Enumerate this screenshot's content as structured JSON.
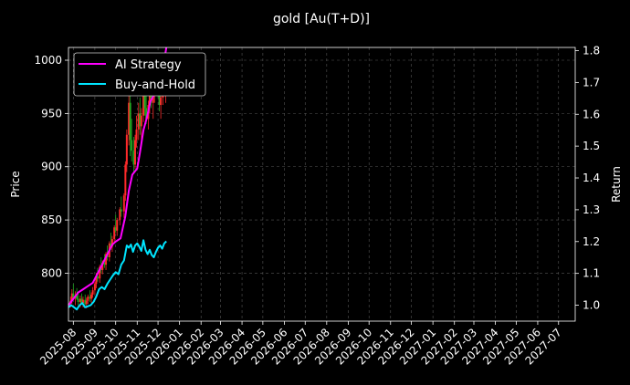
{
  "chart_data": {
    "type": "line",
    "title": "gold [Au(T+D)]",
    "ylabel_left": "Price",
    "ylabel_right": "Return",
    "xlabel": "",
    "grid": true,
    "legend_position": "top-left",
    "ylim_left": [
      755,
      1012
    ],
    "yticks_left": [
      800,
      850,
      900,
      950,
      1000
    ],
    "ylim_right": [
      0.95,
      1.81
    ],
    "yticks_right": [
      1.0,
      1.1,
      1.2,
      1.3,
      1.4,
      1.5,
      1.6,
      1.7,
      1.8
    ],
    "ytick_labels_right": [
      "1.0",
      "1.1",
      "1.2",
      "1.3",
      "1.4",
      "1.5",
      "1.6",
      "1.7",
      "1.8"
    ],
    "xlim": [
      "2025-07-25",
      "2027-07-25"
    ],
    "x_ticks": [
      "2025-08-01",
      "2025-09-01",
      "2025-10-01",
      "2025-11-01",
      "2025-12-01",
      "2026-01-01",
      "2026-02-01",
      "2026-03-01",
      "2026-04-01",
      "2026-05-01",
      "2026-06-01",
      "2026-07-01",
      "2026-08-01",
      "2026-09-01",
      "2026-10-01",
      "2026-11-01",
      "2026-12-01",
      "2027-01-01",
      "2027-02-01",
      "2027-03-01",
      "2027-04-01",
      "2027-05-01",
      "2027-06-01",
      "2027-07-01"
    ],
    "x_tick_labels": [
      "2025-08",
      "2025-09",
      "2025-10",
      "2025-11",
      "2025-12",
      "2026-01",
      "2026-02",
      "2026-03",
      "2026-04",
      "2026-05",
      "2026-06",
      "2026-07",
      "2026-08",
      "2026-09",
      "2026-10",
      "2026-11",
      "2026-12",
      "2027-01",
      "2027-02",
      "2027-03",
      "2027-04",
      "2027-05",
      "2027-06",
      "2027-07"
    ],
    "candlesticks": {
      "up_color": "#ff2a2a",
      "down_color": "#22aa22",
      "ohlc": [
        [
          "2025-07-28",
          772,
          778,
          768,
          774
        ],
        [
          "2025-07-30",
          774,
          785,
          771,
          781
        ],
        [
          "2025-08-01",
          781,
          790,
          776,
          777
        ],
        [
          "2025-08-04",
          777,
          783,
          770,
          779
        ],
        [
          "2025-08-06",
          779,
          786,
          775,
          776
        ],
        [
          "2025-08-08",
          776,
          782,
          770,
          773
        ],
        [
          "2025-08-11",
          773,
          779,
          768,
          776
        ],
        [
          "2025-08-13",
          776,
          781,
          771,
          772
        ],
        [
          "2025-08-15",
          772,
          778,
          768,
          775
        ],
        [
          "2025-08-18",
          775,
          780,
          770,
          771
        ],
        [
          "2025-08-20",
          771,
          777,
          767,
          774
        ],
        [
          "2025-08-22",
          774,
          780,
          771,
          778
        ],
        [
          "2025-08-25",
          778,
          784,
          773,
          776
        ],
        [
          "2025-08-27",
          776,
          782,
          772,
          780
        ],
        [
          "2025-08-29",
          780,
          787,
          777,
          784
        ],
        [
          "2025-09-01",
          784,
          792,
          780,
          790
        ],
        [
          "2025-09-03",
          790,
          800,
          786,
          797
        ],
        [
          "2025-09-05",
          797,
          805,
          792,
          795
        ],
        [
          "2025-09-08",
          795,
          808,
          791,
          806
        ],
        [
          "2025-09-10",
          806,
          815,
          800,
          803
        ],
        [
          "2025-09-12",
          803,
          812,
          799,
          810
        ],
        [
          "2025-09-15",
          810,
          818,
          805,
          808
        ],
        [
          "2025-09-17",
          808,
          820,
          803,
          818
        ],
        [
          "2025-09-19",
          818,
          826,
          812,
          815
        ],
        [
          "2025-09-22",
          815,
          830,
          811,
          828
        ],
        [
          "2025-09-24",
          828,
          838,
          822,
          825
        ],
        [
          "2025-09-26",
          825,
          835,
          820,
          832
        ],
        [
          "2025-09-29",
          832,
          845,
          828,
          843
        ],
        [
          "2025-10-01",
          843,
          855,
          838,
          840
        ],
        [
          "2025-10-03",
          840,
          852,
          835,
          850
        ],
        [
          "2025-10-07",
          850,
          862,
          845,
          860
        ],
        [
          "2025-10-09",
          860,
          872,
          853,
          858
        ],
        [
          "2025-10-13",
          858,
          875,
          852,
          873
        ],
        [
          "2025-10-15",
          873,
          905,
          868,
          902
        ],
        [
          "2025-10-17",
          902,
          935,
          895,
          930
        ],
        [
          "2025-10-20",
          930,
          990,
          920,
          960
        ],
        [
          "2025-10-22",
          960,
          970,
          910,
          925
        ],
        [
          "2025-10-24",
          925,
          945,
          905,
          915
        ],
        [
          "2025-10-27",
          915,
          928,
          895,
          902
        ],
        [
          "2025-10-29",
          902,
          930,
          898,
          925
        ],
        [
          "2025-10-31",
          925,
          948,
          918,
          935
        ],
        [
          "2025-11-03",
          935,
          960,
          925,
          950
        ],
        [
          "2025-11-05",
          950,
          965,
          930,
          938
        ],
        [
          "2025-11-07",
          938,
          955,
          920,
          948
        ],
        [
          "2025-11-10",
          948,
          975,
          942,
          970
        ],
        [
          "2025-11-12",
          970,
          982,
          948,
          955
        ],
        [
          "2025-11-14",
          955,
          972,
          940,
          945
        ],
        [
          "2025-11-17",
          945,
          962,
          935,
          958
        ],
        [
          "2025-11-19",
          958,
          978,
          950,
          972
        ],
        [
          "2025-11-21",
          972,
          985,
          955,
          960
        ],
        [
          "2025-11-24",
          960,
          975,
          945,
          968
        ],
        [
          "2025-11-26",
          968,
          990,
          960,
          985
        ],
        [
          "2025-11-28",
          985,
          1002,
          975,
          978
        ],
        [
          "2025-12-01",
          978,
          995,
          965,
          972
        ],
        [
          "2025-12-03",
          972,
          985,
          952,
          958
        ],
        [
          "2025-12-05",
          958,
          975,
          945,
          965
        ],
        [
          "2025-12-08",
          965,
          985,
          958,
          980
        ],
        [
          "2025-12-10",
          980,
          998,
          970,
          975
        ],
        [
          "2025-12-12",
          975,
          990,
          960,
          985
        ]
      ]
    },
    "series": [
      {
        "name": "AI Strategy",
        "axis": "right",
        "color": "#ff00ff",
        "x": [
          "2025-07-25",
          "2025-08-01",
          "2025-08-08",
          "2025-08-15",
          "2025-08-22",
          "2025-08-29",
          "2025-09-05",
          "2025-09-12",
          "2025-09-19",
          "2025-09-26",
          "2025-10-01",
          "2025-10-08",
          "2025-10-15",
          "2025-10-20",
          "2025-10-25",
          "2025-11-01",
          "2025-11-05",
          "2025-11-10",
          "2025-11-15",
          "2025-11-20",
          "2025-11-25",
          "2025-12-01",
          "2025-12-05",
          "2025-12-10",
          "2025-12-13"
        ],
        "values": [
          1.0,
          1.02,
          1.04,
          1.05,
          1.06,
          1.07,
          1.1,
          1.13,
          1.16,
          1.19,
          1.2,
          1.21,
          1.28,
          1.36,
          1.41,
          1.43,
          1.48,
          1.55,
          1.59,
          1.64,
          1.66,
          1.69,
          1.72,
          1.77,
          1.81
        ]
      },
      {
        "name": "Buy-and-Hold",
        "axis": "left",
        "color": "#00e5ff",
        "x": [
          "2025-07-25",
          "2025-07-29",
          "2025-08-02",
          "2025-08-06",
          "2025-08-10",
          "2025-08-14",
          "2025-08-18",
          "2025-08-22",
          "2025-08-26",
          "2025-08-30",
          "2025-09-03",
          "2025-09-07",
          "2025-09-11",
          "2025-09-15",
          "2025-09-19",
          "2025-09-23",
          "2025-09-27",
          "2025-10-01",
          "2025-10-05",
          "2025-10-09",
          "2025-10-13",
          "2025-10-17",
          "2025-10-20",
          "2025-10-23",
          "2025-10-26",
          "2025-10-29",
          "2025-11-01",
          "2025-11-04",
          "2025-11-07",
          "2025-11-10",
          "2025-11-13",
          "2025-11-16",
          "2025-11-19",
          "2025-11-22",
          "2025-11-25",
          "2025-11-28",
          "2025-12-01",
          "2025-12-04",
          "2025-12-07",
          "2025-12-10",
          "2025-12-13"
        ],
        "values": [
          768,
          770,
          768,
          766,
          770,
          772,
          768,
          769,
          770,
          773,
          778,
          785,
          787,
          785,
          790,
          794,
          798,
          801,
          799,
          808,
          812,
          826,
          824,
          827,
          820,
          826,
          828,
          825,
          821,
          831,
          822,
          818,
          822,
          817,
          815,
          820,
          824,
          826,
          823,
          828,
          830
        ]
      }
    ]
  }
}
